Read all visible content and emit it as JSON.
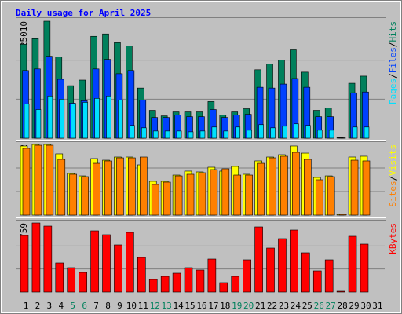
{
  "title": "Daily usage for April 2025",
  "chart_data": [
    {
      "type": "bar",
      "ylim": [
        0,
        25010
      ],
      "grid": true,
      "legend_separator": "/",
      "series": [
        {
          "name": "Hits",
          "color": "#00805c",
          "values": [
            20076,
            21266,
            25010,
            17354,
            11229,
            12420,
            21778,
            22288,
            20416,
            19736,
            10719,
            5955,
            4764,
            5615,
            5615,
            5615,
            7826,
            4934,
            5615,
            6295,
            14632,
            15823,
            16673,
            18885,
            14121,
            5955,
            6465,
            100,
            11739,
            13271,
            0
          ]
        },
        {
          "name": "Files",
          "color": "#0040ff",
          "values": [
            14462,
            14802,
            17524,
            12590,
            7486,
            7996,
            14802,
            16843,
            13781,
            14462,
            8167,
            4424,
            4424,
            4934,
            4594,
            4594,
            6125,
            4424,
            4934,
            5104,
            10889,
            10719,
            11569,
            12760,
            10889,
            4594,
            4594,
            80,
            9698,
            9868,
            0
          ]
        },
        {
          "name": "Pages",
          "color": "#00e0ff",
          "values": [
            7316,
            6125,
            9017,
            8337,
            7316,
            7656,
            8507,
            9017,
            8167,
            2722,
            2212,
            1531,
            1531,
            1531,
            1361,
            1531,
            2382,
            1531,
            2382,
            1701,
            2892,
            2212,
            2552,
            3062,
            2722,
            1701,
            1701,
            40,
            2382,
            2382,
            0
          ]
        }
      ]
    },
    {
      "type": "bar",
      "ylim": [
        0,
        1232
      ],
      "grid": true,
      "legend_separator": "/",
      "series": [
        {
          "name": "Visits",
          "color": "#ffff00",
          "values": [
            1205,
            1232,
            1232,
            1068,
            726,
            684,
            986,
            958,
            1013,
            1013,
            876,
            589,
            589,
            698,
            767,
            753,
            835,
            767,
            849,
            712,
            945,
            1013,
            1054,
            1205,
            1081,
            657,
            684,
            14,
            1013,
            1027,
            0
          ]
        },
        {
          "name": "Sites",
          "color": "#ff8000",
          "values": [
            1164,
            1218,
            1218,
            972,
            712,
            671,
            903,
            945,
            999,
            999,
            1013,
            534,
            575,
            684,
            712,
            739,
            794,
            808,
            698,
            698,
            903,
            999,
            1027,
            1095,
            972,
            616,
            671,
            14,
            958,
            945,
            0
          ]
        }
      ]
    },
    {
      "type": "bar",
      "ylim": [
        0,
        7595759
      ],
      "grid": true,
      "categories": [
        "1",
        "2",
        "3",
        "4",
        "5",
        "6",
        "7",
        "8",
        "9",
        "10",
        "11",
        "12",
        "13",
        "14",
        "15",
        "16",
        "17",
        "18",
        "19",
        "20",
        "21",
        "22",
        "23",
        "24",
        "25",
        "26",
        "27",
        "28",
        "29",
        "30",
        "31"
      ],
      "category_colors": [
        "#000000",
        "#000000",
        "#000000",
        "#000000",
        "#00805c",
        "#00805c",
        "#000000",
        "#000000",
        "#000000",
        "#000000",
        "#000000",
        "#00805c",
        "#00805c",
        "#000000",
        "#000000",
        "#000000",
        "#000000",
        "#000000",
        "#00805c",
        "#00805c",
        "#000000",
        "#000000",
        "#000000",
        "#000000",
        "#000000",
        "#00805c",
        "#00805c",
        "#000000",
        "#000000",
        "#000000",
        "#000000"
      ],
      "series": [
        {
          "name": "KBytes",
          "color": "#ff0000",
          "values": [
            6214712,
            7595759,
            7250497,
            3193671,
            2675778,
            2157886,
            6732605,
            6301020,
            5178926,
            6559974,
            3797880,
            1381047,
            1726309,
            2071571,
            2675778,
            2416832,
            3625249,
            1035785,
            1726309,
            3538933,
            7164000,
            4833665,
            5869450,
            6818922,
            4315772,
            2330516,
            3538933,
            86313,
            6128396,
            5265243,
            0
          ]
        }
      ]
    }
  ]
}
